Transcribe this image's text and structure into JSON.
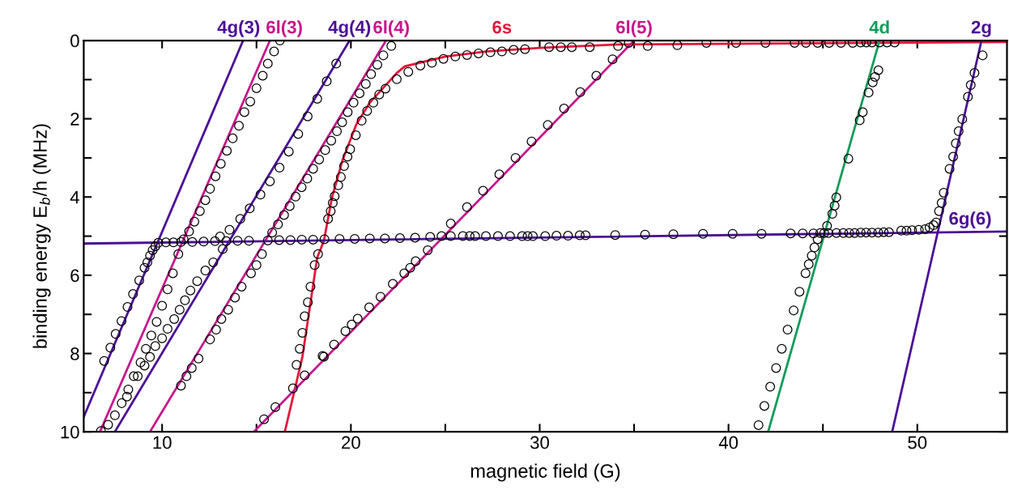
{
  "chart_data": {
    "type": "line",
    "xlabel": "magnetic field (G)",
    "ylabel": "binding energy E$_{b}$/h (MHz)",
    "xlim": [
      5.85,
      54.75
    ],
    "ylim": [
      10,
      0
    ],
    "xticks": [
      10,
      {
        "value": 15,
        "label": null
      },
      20,
      {
        "value": 25,
        "label": null
      },
      30,
      {
        "value": 35,
        "label": null
      },
      40,
      {
        "value": 45,
        "label": null
      },
      50
    ],
    "yticks": [
      0,
      {
        "value": 1,
        "label": null
      },
      2,
      {
        "value": 3,
        "label": null
      },
      4,
      {
        "value": 5,
        "label": null
      },
      6,
      {
        "value": 7,
        "label": null
      },
      8,
      {
        "value": 9,
        "label": null
      },
      10
    ],
    "grid": false,
    "legend": false,
    "series": [
      {
        "color": "#4b0f96",
        "x": [
          5.85,
          14.29
        ],
        "values": [
          9.62,
          0
        ]
      },
      {
        "color": "#c8168c",
        "x": [
          6.71,
          15.71
        ],
        "values": [
          10,
          0
        ]
      },
      {
        "color": "#4b0f96",
        "x": [
          7.5,
          19.93
        ],
        "values": [
          10,
          0
        ]
      },
      {
        "color": "#c8168c",
        "x": [
          9.36,
          21.86
        ],
        "values": [
          10,
          0
        ]
      },
      {
        "color": "#e5153a",
        "x": [
          16.5,
          17.43,
          18.22,
          18.57,
          19.0,
          19.57,
          20.29,
          21.0,
          22.43,
          22.86,
          25.0,
          27.14,
          30.0,
          34.3,
          54.75
        ],
        "values": [
          10,
          8.09,
          5.54,
          5.12,
          4.01,
          3.04,
          2.14,
          1.59,
          0.83,
          0.66,
          0.41,
          0.28,
          0.19,
          0.1,
          0.04
        ]
      },
      {
        "color": "#c8168c",
        "x": [
          14.86,
          35.0
        ],
        "values": [
          10,
          0
        ]
      },
      {
        "color": "#129b5a",
        "x": [
          42.1,
          48.0
        ],
        "values": [
          10,
          0
        ]
      },
      {
        "color": "#4b0f96",
        "x": [
          48.67,
          53.4
        ],
        "values": [
          10,
          0
        ]
      },
      {
        "color": "#4b0f96",
        "x": [
          5.85,
          54.75
        ],
        "values": [
          5.19,
          4.88
        ]
      },
      {
        "type": "scatter",
        "color": "#000000",
        "marker": "circle",
        "x": [
          6.93,
          7.26,
          7.54,
          7.85,
          8.17,
          8.46,
          8.79,
          9.07,
          9.22,
          9.36,
          9.5,
          9.64,
          9.8,
          10.2,
          10.6,
          11.0,
          11.6,
          12.2,
          12.8,
          13.4,
          14.0,
          14.6,
          15.6,
          16.2,
          16.8,
          17.4,
          18.0,
          18.6,
          19.4,
          20.2,
          21.0,
          21.8,
          22.6,
          23.4,
          24.2,
          24.8,
          25.29,
          25.93,
          26.29,
          26.58,
          27.15,
          27.79,
          28.43,
          29.07,
          29.36,
          29.64,
          30.29,
          30.89,
          31.5,
          32.12,
          32.43,
          34.0,
          35.58,
          37.08,
          38.65,
          40.22,
          41.75,
          43.29,
          43.93,
          44.5,
          44.86,
          45.07,
          45.29,
          45.72,
          46.08,
          46.39,
          46.68,
          47.0,
          47.29,
          47.6,
          47.93,
          48.22,
          48.5,
          49.15,
          49.43,
          49.72,
          50.08,
          50.41,
          50.65,
          50.86,
          51.0,
          51.15,
          51.29,
          51.4,
          51.71,
          51.9,
          52.04,
          52.19,
          52.38,
          52.68,
          52.83,
          53.03,
          53.46,
          44.72,
          44.55,
          44.41,
          44.25,
          44.08,
          43.76,
          43.45,
          43.13,
          42.82,
          42.52,
          42.21,
          41.9,
          41.59,
          45.22,
          45.5,
          45.62,
          45.71,
          46.35,
          46.95,
          47.11,
          47.42,
          47.64,
          47.76,
          47.94,
          38.83,
          40.4,
          41.96,
          43.5,
          44.1,
          44.72,
          45.33,
          45.96,
          46.58,
          47.0,
          47.3,
          47.6,
          48.0,
          48.4,
          48.8,
          32.65,
          34.15,
          35.72,
          37.29,
          30.5,
          31.12,
          31.7,
          29.22,
          28.62,
          28.0,
          27.39,
          26.76,
          26.15,
          25.53,
          24.9,
          24.29,
          23.68,
          23.04,
          22.43,
          21.83,
          21.5,
          21.19,
          20.86,
          20.57,
          20.26,
          19.96,
          19.82,
          19.64,
          19.47,
          19.33,
          19.14,
          19.04,
          18.93,
          18.79,
          18.26,
          18.08,
          17.86,
          17.72,
          17.55,
          17.43,
          17.29,
          17.12,
          17.55,
          16.93,
          25.29,
          26.15,
          27.0,
          27.86,
          28.72,
          29.57,
          30.43,
          31.29,
          32.15,
          33.0,
          33.86,
          34.72,
          24.07,
          23.43,
          23.14,
          22.83,
          22.22,
          21.57,
          20.97,
          20.36,
          20.04,
          19.71,
          19.11,
          18.57,
          18.5,
          16.0,
          15.4,
          22.14,
          21.72,
          21.4,
          21.07,
          20.79,
          20.46,
          20.14,
          19.83,
          19.54,
          19.26,
          18.96,
          18.64,
          18.32,
          18.0,
          17.69,
          17.39,
          17.07,
          16.76,
          16.46,
          16.14,
          15.83,
          15.29,
          15.0,
          14.71,
          14.21,
          13.86,
          13.5,
          13.14,
          12.86,
          12.54,
          11.93,
          11.57,
          11.29,
          11.0,
          19.22,
          18.72,
          18.22,
          17.71,
          17.21,
          16.71,
          16.22,
          15.71,
          15.21,
          14.64,
          14.14,
          13.57,
          13.07,
          13.21,
          12.71,
          12.29,
          11.86,
          11.5,
          11.21,
          10.93,
          10.64,
          10.29,
          10.0,
          9.64,
          9.36,
          9.07,
          8.71,
          16.24,
          15.93,
          15.6,
          15.33,
          15.0,
          14.67,
          14.36,
          14.07,
          13.74,
          13.43,
          13.11,
          12.83,
          12.54,
          12.29,
          12.0,
          11.71,
          11.43,
          11.14,
          10.86,
          10.57,
          10.29,
          10.0,
          9.71,
          9.43,
          9.14,
          8.86,
          8.5,
          8.21,
          7.86,
          7.5,
          7.14,
          6.76,
          8.14
        ],
        "values": [
          8.19,
          7.85,
          7.5,
          7.17,
          6.81,
          6.48,
          6.13,
          5.81,
          5.67,
          5.5,
          5.36,
          5.26,
          5.17,
          5.16,
          5.16,
          5.15,
          5.15,
          5.14,
          5.13,
          5.13,
          5.12,
          5.12,
          5.11,
          5.1,
          5.1,
          5.09,
          5.09,
          5.08,
          5.07,
          5.07,
          5.06,
          5.06,
          5.05,
          5.04,
          5.02,
          5.0,
          5.0,
          5.0,
          5.0,
          5.0,
          5.0,
          5.0,
          5.0,
          5.0,
          5.0,
          5.0,
          5.0,
          4.99,
          4.99,
          4.98,
          4.98,
          4.97,
          4.96,
          4.95,
          4.94,
          4.94,
          4.94,
          4.93,
          4.93,
          4.93,
          4.92,
          4.92,
          4.92,
          4.92,
          4.92,
          4.92,
          4.92,
          4.91,
          4.91,
          4.91,
          4.91,
          4.9,
          4.9,
          4.86,
          4.86,
          4.85,
          4.84,
          4.82,
          4.78,
          4.72,
          4.65,
          4.36,
          4.15,
          3.89,
          3.28,
          2.97,
          2.63,
          2.32,
          2.01,
          1.44,
          1.14,
          0.83,
          0.38,
          5.08,
          5.29,
          5.5,
          5.72,
          5.95,
          6.42,
          6.9,
          7.39,
          7.88,
          8.37,
          8.85,
          9.34,
          9.83,
          4.74,
          4.43,
          4.22,
          4.01,
          3.02,
          2.04,
          1.83,
          1.33,
          1.07,
          0.93,
          0.76,
          0.06,
          0.06,
          0.06,
          0.06,
          0.06,
          0.06,
          0.06,
          0.06,
          0.06,
          0.05,
          0.05,
          0.05,
          0.05,
          0.05,
          0.05,
          0.17,
          0.14,
          0.14,
          0.12,
          0.17,
          0.17,
          0.17,
          0.22,
          0.24,
          0.28,
          0.3,
          0.33,
          0.37,
          0.41,
          0.47,
          0.57,
          0.64,
          0.8,
          0.99,
          1.23,
          1.38,
          1.59,
          1.8,
          2.05,
          2.42,
          2.78,
          2.97,
          3.21,
          3.49,
          3.7,
          3.98,
          4.15,
          4.36,
          4.56,
          5.46,
          5.74,
          6.29,
          6.69,
          7.05,
          7.47,
          7.88,
          8.29,
          8.56,
          8.89,
          4.68,
          4.26,
          3.84,
          3.42,
          3.0,
          2.58,
          2.16,
          1.74,
          1.32,
          0.9,
          0.48,
          0.06,
          5.36,
          5.64,
          5.81,
          5.95,
          6.22,
          6.55,
          6.82,
          7.11,
          7.26,
          7.43,
          7.77,
          8.08,
          8.06,
          9.37,
          9.68,
          0.14,
          0.38,
          0.62,
          0.86,
          1.11,
          1.35,
          1.59,
          1.83,
          2.09,
          2.32,
          2.56,
          2.8,
          3.04,
          3.28,
          3.53,
          3.75,
          3.99,
          4.23,
          4.46,
          4.7,
          4.91,
          5.46,
          5.74,
          5.95,
          6.29,
          6.57,
          6.88,
          7.12,
          7.39,
          7.64,
          8.13,
          8.37,
          8.58,
          8.82,
          0.59,
          1.04,
          1.49,
          1.94,
          2.39,
          2.84,
          3.25,
          3.6,
          3.94,
          4.29,
          4.56,
          4.84,
          5.01,
          5.33,
          5.67,
          5.88,
          6.15,
          6.39,
          6.64,
          6.88,
          7.12,
          7.37,
          7.61,
          7.81,
          8.09,
          8.31,
          8.58,
          0.0,
          0.28,
          0.59,
          0.9,
          1.22,
          1.56,
          1.83,
          2.18,
          2.5,
          2.82,
          3.15,
          3.47,
          3.79,
          4.08,
          4.36,
          4.63,
          4.88,
          5.08,
          5.46,
          5.95,
          6.36,
          6.78,
          7.19,
          7.54,
          7.88,
          8.23,
          8.58,
          8.92,
          9.27,
          9.58,
          9.82,
          9.98,
          9.1
        ]
      }
    ],
    "annotations": [
      {
        "text": "4g(3)",
        "x": 14.29,
        "y": 0
      },
      {
        "text": "6l(3)",
        "x": 16.24,
        "y": 0
      },
      {
        "text": "4g(4)",
        "x": 19.93,
        "y": 0
      },
      {
        "text": "6l(4)",
        "x": 22.14,
        "y": 0
      },
      {
        "text": "6s",
        "x": 28.0,
        "y": 0.28
      },
      {
        "text": "6l(5)",
        "x": 35.0,
        "y": 0
      },
      {
        "text": "4d",
        "x": 48.0,
        "y": 0
      },
      {
        "text": "2g",
        "x": 53.4,
        "y": 0
      },
      {
        "text": "6g(6)",
        "x": 52.8,
        "y": 4.89
      }
    ]
  }
}
